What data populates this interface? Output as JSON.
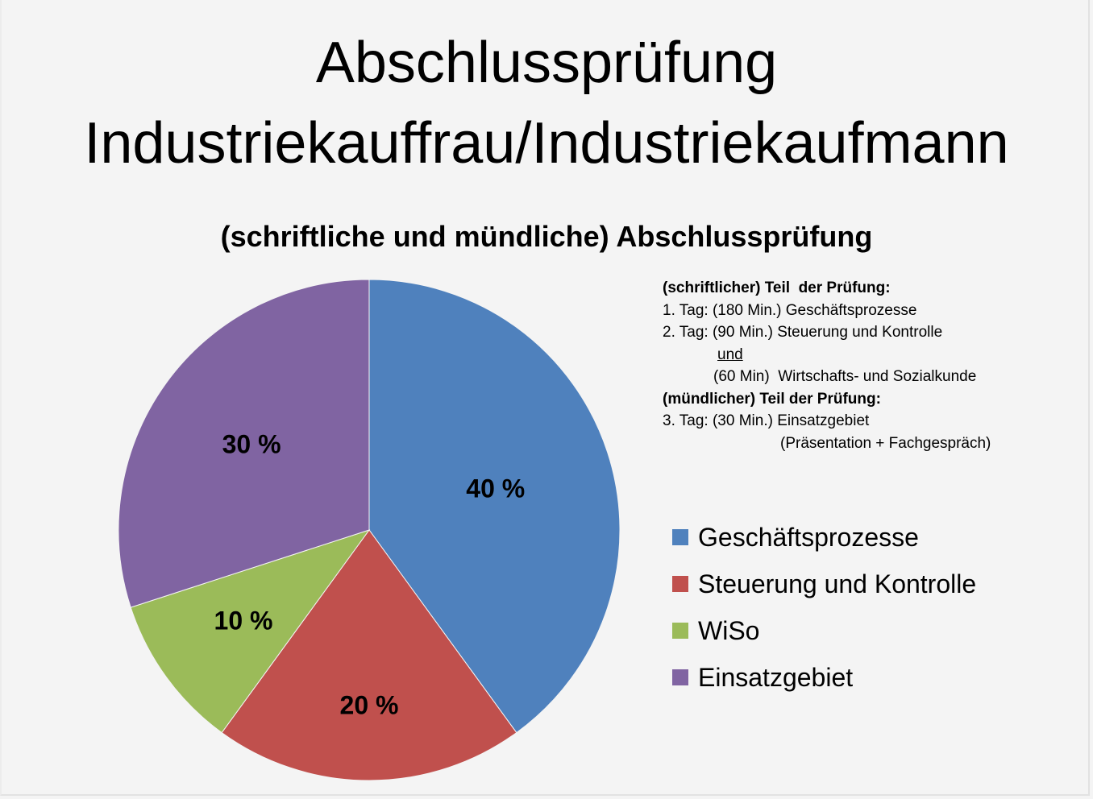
{
  "title": {
    "line1": "Abschlussprüfung",
    "line2": "Industriekauffrau/Industriekaufmann"
  },
  "chart_data": {
    "type": "pie",
    "title": "(schriftliche und mündliche) Abschlussprüfung",
    "categories": [
      "Geschäftsprozesse",
      "Steuerung und Kontrolle",
      "WiSo",
      "Einsatzgebiet"
    ],
    "values": [
      40,
      20,
      10,
      30
    ],
    "labels": [
      "40 %",
      "20 %",
      "10 %",
      "30 %"
    ],
    "colors": [
      "#4f81bd",
      "#c0504d",
      "#9bbb59",
      "#8064a2"
    ],
    "start_angle": "12 o'clock, clockwise",
    "legend_position": "right"
  },
  "info": {
    "lines": [
      {
        "text": "(schriftlicher) Teil  der Prüfung:",
        "style": "b"
      },
      {
        "text": "1. Tag: (180 Min.) Geschäftsprozesse",
        "style": ""
      },
      {
        "text": "2. Tag: (90 Min.) Steuerung und Kontrolle",
        "style": ""
      },
      {
        "text": "und",
        "style": "u",
        "indent": 68
      },
      {
        "text": "(60 Min)  Wirtschafts- und Sozialkunde",
        "style": "",
        "indent": 63
      },
      {
        "text": "(mündlicher) Teil der Prüfung:",
        "style": "b"
      },
      {
        "text": "3. Tag: (30 Min.) Einsatzgebiet",
        "style": ""
      },
      {
        "text": "(Präsentation + Fachgespräch)",
        "style": "",
        "indent": 146
      }
    ]
  }
}
